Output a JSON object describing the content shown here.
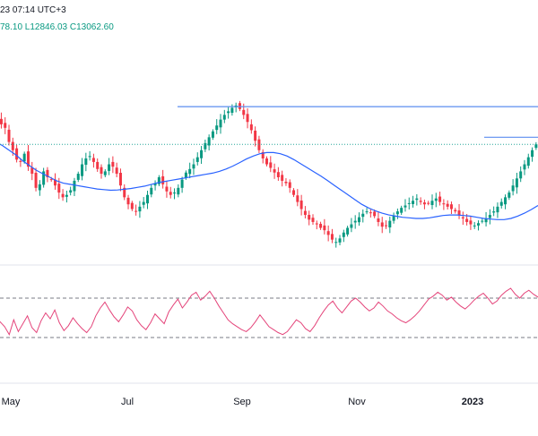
{
  "header": {
    "timestamp": "23 07:14 UTC+3",
    "ohlc": "78.10  L12846.03  C13062.60"
  },
  "colors": {
    "up": "#089981",
    "down": "#f23645",
    "ma": "#2962ff",
    "resistance": "#5b8def",
    "price_dotted": "#26a69a",
    "rsi": "#e4447a",
    "rsi_bands": "#787b86",
    "divider": "#e0e3eb"
  },
  "chart_data": [
    {
      "type": "candlestick",
      "x_tick_labels": [
        "May",
        "Jul",
        "Sep",
        "Nov",
        "2023"
      ],
      "series": [
        {
          "name": "",
          "kind": "candles",
          "close": [
            12350,
            12300,
            12270,
            12150,
            12080,
            12000,
            11980,
            12050,
            11940,
            11880,
            11760,
            11790,
            11900,
            11850,
            11830,
            11780,
            11720,
            11680,
            11700,
            11740,
            11820,
            11880,
            11960,
            12010,
            12030,
            11980,
            11920,
            11880,
            11900,
            11960,
            11940,
            11880,
            11780,
            11680,
            11620,
            11580,
            11560,
            11600,
            11640,
            11700,
            11760,
            11800,
            11850,
            11790,
            11730,
            11700,
            11720,
            11760,
            11830,
            11890,
            11920,
            11960,
            12020,
            12080,
            12140,
            12190,
            12240,
            12290,
            12340,
            12380,
            12410,
            12440,
            12460,
            12430,
            12380,
            12320,
            12250,
            12160,
            12080,
            12010,
            11960,
            11930,
            11890,
            11850,
            11820,
            11800,
            11760,
            11700,
            11640,
            11580,
            11530,
            11490,
            11470,
            11450,
            11420,
            11400,
            11360,
            11320,
            11300,
            11330,
            11380,
            11420,
            11450,
            11480,
            11510,
            11540,
            11560,
            11550,
            11520,
            11470,
            11430,
            11440,
            11480,
            11520,
            11560,
            11590,
            11610,
            11630,
            11650,
            11670,
            11640,
            11620,
            11630,
            11650,
            11670,
            11640,
            11620,
            11600,
            11580,
            11560,
            11530,
            11500,
            11470,
            11450,
            11440,
            11460,
            11480,
            11500,
            11530,
            11560,
            11600,
            11640,
            11680,
            11720,
            11780,
            11840,
            11900,
            11960,
            12020,
            12080,
            12130
          ],
          "high_line": 12450,
          "recent_line": 12190
        },
        {
          "name": "",
          "kind": "moving-average",
          "values": [
            12150,
            12120,
            12080,
            12040,
            11990,
            11950,
            11910,
            11880,
            11850,
            11820,
            11800,
            11790,
            11780,
            11770,
            11760,
            11750,
            11745,
            11740,
            11742,
            11748,
            11755,
            11765,
            11775,
            11790,
            11805,
            11815,
            11825,
            11835,
            11845,
            11855,
            11865,
            11875,
            11885,
            11900,
            11920,
            11945,
            11975,
            12005,
            12030,
            12050,
            12060,
            12060,
            12050,
            12030,
            12000,
            11965,
            11930,
            11895,
            11860,
            11820,
            11780,
            11740,
            11700,
            11660,
            11620,
            11590,
            11565,
            11545,
            11530,
            11520,
            11510,
            11505,
            11500,
            11500,
            11505,
            11515,
            11525,
            11530,
            11530,
            11525,
            11520,
            11510,
            11500,
            11495,
            11490,
            11490,
            11500,
            11520,
            11545,
            11575,
            11610
          ]
        }
      ]
    },
    {
      "type": "line",
      "series": [
        {
          "name": "",
          "values": [
            38,
            46,
            41,
            33,
            48,
            36,
            44,
            52,
            40,
            35,
            47,
            55,
            49,
            58,
            45,
            37,
            42,
            50,
            44,
            39,
            35,
            41,
            52,
            60,
            66,
            58,
            51,
            46,
            53,
            61,
            57,
            48,
            42,
            38,
            45,
            54,
            49,
            44,
            56,
            63,
            69,
            60,
            66,
            73,
            76,
            68,
            72,
            77,
            70,
            62,
            55,
            48,
            44,
            41,
            38,
            36,
            40,
            46,
            53,
            47,
            41,
            38,
            35,
            33,
            36,
            42,
            48,
            45,
            39,
            36,
            42,
            50,
            57,
            63,
            67,
            60,
            55,
            61,
            67,
            70,
            66,
            61,
            57,
            60,
            66,
            62,
            57,
            54,
            50,
            47,
            45,
            48,
            52,
            57,
            63,
            69,
            72,
            76,
            73,
            68,
            71,
            66,
            62,
            59,
            63,
            68,
            72,
            75,
            70,
            64,
            67,
            73,
            77,
            80,
            74,
            70,
            75,
            78,
            74,
            71
          ],
          "ylim": [
            0,
            100
          ],
          "bands": [
            30,
            70
          ]
        }
      ]
    }
  ]
}
